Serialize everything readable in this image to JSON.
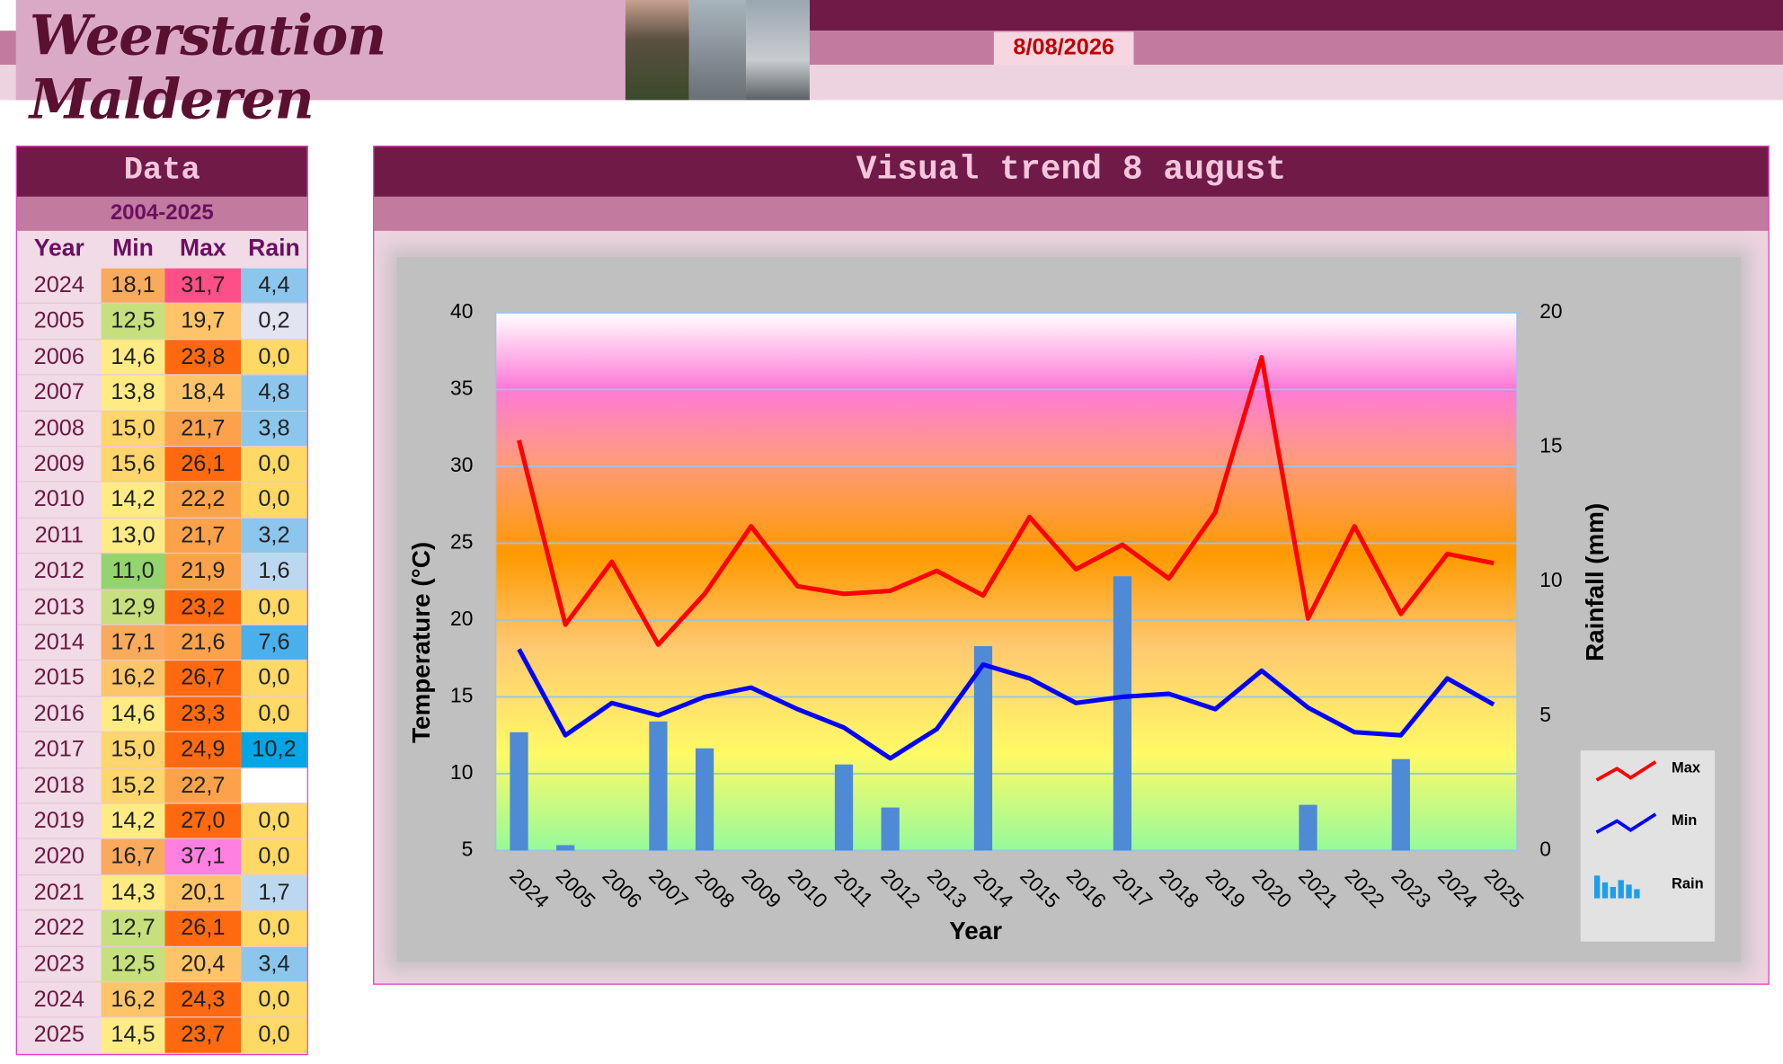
{
  "header": {
    "title": "Weerstation Malderen",
    "date": "8/08/2026"
  },
  "table": {
    "title": "Data",
    "period": "2004-2025",
    "columns": [
      "Year",
      "Min",
      "Max",
      "Rain"
    ],
    "rows": [
      [
        "2024",
        "18,1",
        "31,7",
        "4,4"
      ],
      [
        "2005",
        "12,5",
        "19,7",
        "0,2"
      ],
      [
        "2006",
        "14,6",
        "23,8",
        "0,0"
      ],
      [
        "2007",
        "13,8",
        "18,4",
        "4,8"
      ],
      [
        "2008",
        "15,0",
        "21,7",
        "3,8"
      ],
      [
        "2009",
        "15,6",
        "26,1",
        "0,0"
      ],
      [
        "2010",
        "14,2",
        "22,2",
        "0,0"
      ],
      [
        "2011",
        "13,0",
        "21,7",
        "3,2"
      ],
      [
        "2012",
        "11,0",
        "21,9",
        "1,6"
      ],
      [
        "2013",
        "12,9",
        "23,2",
        "0,0"
      ],
      [
        "2014",
        "17,1",
        "21,6",
        "7,6"
      ],
      [
        "2015",
        "16,2",
        "26,7",
        "0,0"
      ],
      [
        "2016",
        "14,6",
        "23,3",
        "0,0"
      ],
      [
        "2017",
        "15,0",
        "24,9",
        "10,2"
      ],
      [
        "2018",
        "15,2",
        "22,7",
        null
      ],
      [
        "2019",
        "14,2",
        "27,0",
        "0,0"
      ],
      [
        "2020",
        "16,7",
        "37,1",
        "0,0"
      ],
      [
        "2021",
        "14,3",
        "20,1",
        "1,7"
      ],
      [
        "2022",
        "12,7",
        "26,1",
        "0,0"
      ],
      [
        "2023",
        "12,5",
        "20,4",
        "3,4"
      ],
      [
        "2024",
        "16,2",
        "24,3",
        "0,0"
      ],
      [
        "2025",
        "14,5",
        "23,7",
        "0,0"
      ]
    ]
  },
  "chart_data": {
    "type": "line",
    "title": "Visual trend 8 august",
    "x_label": "Year",
    "y_label": "Temperature (°C)",
    "y2_label": "Rainfall (mm)",
    "categories": [
      "2024",
      "2005",
      "2006",
      "2007",
      "2008",
      "2009",
      "2010",
      "2011",
      "2012",
      "2013",
      "2014",
      "2015",
      "2016",
      "2017",
      "2018",
      "2019",
      "2020",
      "2021",
      "2022",
      "2023",
      "2024",
      "2025"
    ],
    "series": [
      {
        "name": "Max",
        "color": "#ff0000",
        "values": [
          31.7,
          19.7,
          23.8,
          18.4,
          21.7,
          26.1,
          22.2,
          21.7,
          21.9,
          23.2,
          21.6,
          26.7,
          23.3,
          24.9,
          22.7,
          27.0,
          37.1,
          20.1,
          26.1,
          20.4,
          24.3,
          23.7
        ]
      },
      {
        "name": "Min",
        "color": "#0000ff",
        "values": [
          18.1,
          12.5,
          14.6,
          13.8,
          15.0,
          15.6,
          14.2,
          13.0,
          11.0,
          12.9,
          17.1,
          16.2,
          14.6,
          15.0,
          15.2,
          14.2,
          16.7,
          14.3,
          12.7,
          12.5,
          16.2,
          14.5
        ]
      },
      {
        "name": "Rain",
        "type": "bar",
        "axis": "y2",
        "color": "#4f8ad6",
        "values": [
          4.4,
          0.2,
          0.0,
          4.8,
          3.8,
          0.0,
          0.0,
          3.2,
          1.6,
          0.0,
          7.6,
          0.0,
          0.0,
          10.2,
          null,
          0.0,
          0.0,
          1.7,
          0.0,
          3.4,
          0.0,
          0.0
        ]
      }
    ],
    "ylim": [
      5,
      40
    ],
    "yticks": [
      5,
      10,
      15,
      20,
      25,
      30,
      35,
      40
    ],
    "y2lim": [
      0,
      20
    ],
    "y2ticks": [
      0,
      5,
      10,
      15,
      20
    ],
    "grid": true,
    "legend": "right"
  }
}
